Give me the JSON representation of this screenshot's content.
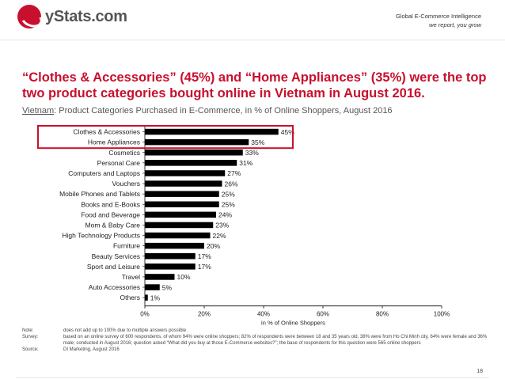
{
  "header": {
    "logo_text": "yStats.com",
    "tagline_line1": "Global E-Commerce Intelligence",
    "tagline_line2": "we report, you grow"
  },
  "title": "“Clothes & Accessories” (45%) and “Home Appliances” (35%) were the top two product categories bought online in Vietnam in August 2016.",
  "subtitle": {
    "country": "Vietnam",
    "rest": ": Product Categories Purchased in E-Commerce, in % of Online Shoppers, August 2016"
  },
  "chart_data": {
    "type": "bar",
    "orientation": "horizontal",
    "categories": [
      "Clothes & Accessories",
      "Home Appliances",
      "Cosmetics",
      "Personal Care",
      "Computers and Laptops",
      "Vouchers",
      "Mobile Phones and Tablets",
      "Books and E-Books",
      "Food and Beverage",
      "Mom & Baby Care",
      "High Technology Products",
      "Furniture",
      "Beauty Services",
      "Sport and Leisure",
      "Travel",
      "Auto Accessories",
      "Others"
    ],
    "values": [
      45,
      35,
      33,
      31,
      27,
      26,
      25,
      25,
      24,
      23,
      22,
      20,
      17,
      17,
      10,
      5,
      1
    ],
    "value_labels": [
      "45%",
      "35%",
      "33%",
      "31%",
      "27%",
      "26%",
      "25%",
      "25%",
      "24%",
      "23%",
      "22%",
      "20%",
      "17%",
      "17%",
      "10%",
      "5%",
      "1%"
    ],
    "xlim": [
      0,
      100
    ],
    "xticks": [
      "0%",
      "20%",
      "40%",
      "60%",
      "80%",
      "100%"
    ],
    "xlabel": "in % of Online Shoppers",
    "highlighted_categories": [
      "Clothes & Accessories",
      "Home Appliances"
    ],
    "bar_color": "#000000",
    "highlight_color": "#c8102e",
    "grid": false
  },
  "notes": {
    "note_label": "Note:",
    "note_text": "does not add up to 100% due to multiple answers possible",
    "survey_label": "Survey:",
    "survey_text": "based on an online survey of 600 respondents, of whom 94% were online shoppers; 82% of respondents were between 18 and 35 years old, 38% were from Ho Chi Minh city, 64% were female and 36% male; conducted in August 2016; question asked “What did you buy at those E-Commerce websites?”; the base of respondents for this question were 565 online shoppers",
    "source_label": "Source:",
    "source_text": "DI Marketing, August 2016"
  },
  "page_number": "18",
  "colors": {
    "brand_red": "#c8102e"
  }
}
